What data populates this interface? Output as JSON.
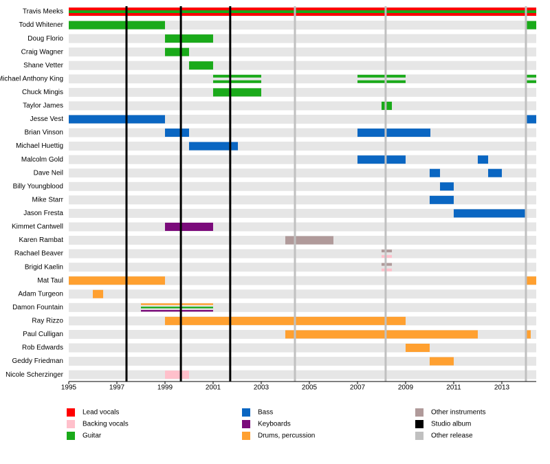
{
  "chart_data": {
    "type": "timeline",
    "xlim": [
      1995,
      2014.43
    ],
    "xticks": [
      1995,
      1997,
      1999,
      2001,
      2003,
      2005,
      2007,
      2009,
      2011,
      2013
    ],
    "legend": [
      {
        "name": "Lead vocals",
        "color": "#ff0000"
      },
      {
        "name": "Backing vocals",
        "color": "#ffc0cb"
      },
      {
        "name": "Guitar",
        "color": "#1aaa1a"
      },
      {
        "name": "Bass",
        "color": "#0a66c2"
      },
      {
        "name": "Keyboards",
        "color": "#7a0a7a"
      },
      {
        "name": "Drums, percussion",
        "color": "#ffa030"
      },
      {
        "name": "Other instruments",
        "color": "#b09a9a"
      },
      {
        "name": "Studio album",
        "color": "#000000"
      },
      {
        "name": "Other release",
        "color": "#c0c0c0"
      }
    ],
    "releases": [
      {
        "kind": "Studio album",
        "year": 1997.4
      },
      {
        "kind": "Studio album",
        "year": 1999.66
      },
      {
        "kind": "Studio album",
        "year": 2001.71
      },
      {
        "kind": "Other release",
        "year": 2004.4
      },
      {
        "kind": "Other release",
        "year": 2008.17
      },
      {
        "kind": "Other release",
        "year": 2014.0
      }
    ],
    "rows": [
      {
        "name": "Travis Meeks",
        "bars": [
          {
            "roles": [
              "Lead vocals",
              "Guitar"
            ],
            "start": 1995,
            "end": 2014.43
          }
        ]
      },
      {
        "name": "Todd Whitener",
        "bars": [
          {
            "roles": [
              "Guitar"
            ],
            "start": 1995,
            "end": 1999
          },
          {
            "roles": [
              "Guitar"
            ],
            "start": 2014,
            "end": 2014.43
          }
        ]
      },
      {
        "name": "Doug Florio",
        "bars": [
          {
            "roles": [
              "Guitar"
            ],
            "start": 1999,
            "end": 2001
          }
        ]
      },
      {
        "name": "Craig Wagner",
        "bars": [
          {
            "roles": [
              "Guitar"
            ],
            "start": 1999,
            "end": 2000
          }
        ]
      },
      {
        "name": "Shane Vetter",
        "bars": [
          {
            "roles": [
              "Guitar"
            ],
            "start": 2000,
            "end": 2001
          }
        ]
      },
      {
        "name": "Michael Anthony King",
        "bars": [
          {
            "roles": [
              "Guitar"
            ],
            "stripes": true,
            "start": 2001,
            "end": 2003
          },
          {
            "roles": [
              "Guitar"
            ],
            "stripes": true,
            "start": 2007,
            "end": 2009
          },
          {
            "roles": [
              "Guitar"
            ],
            "stripes": true,
            "start": 2014,
            "end": 2014.43
          }
        ]
      },
      {
        "name": "Chuck Mingis",
        "bars": [
          {
            "roles": [
              "Guitar"
            ],
            "start": 2001,
            "end": 2003
          }
        ]
      },
      {
        "name": "Taylor James",
        "bars": [
          {
            "roles": [
              "Guitar"
            ],
            "start": 2008,
            "end": 2008.43
          }
        ]
      },
      {
        "name": "Jesse Vest",
        "bars": [
          {
            "roles": [
              "Bass"
            ],
            "start": 1995,
            "end": 1999
          },
          {
            "roles": [
              "Bass"
            ],
            "start": 2014,
            "end": 2014.43
          }
        ]
      },
      {
        "name": "Brian Vinson",
        "bars": [
          {
            "roles": [
              "Bass"
            ],
            "start": 1999,
            "end": 2000
          },
          {
            "roles": [
              "Bass"
            ],
            "start": 2007,
            "end": 2010.03
          }
        ]
      },
      {
        "name": "Michael Huettig",
        "bars": [
          {
            "roles": [
              "Bass"
            ],
            "start": 2000,
            "end": 2002.03
          }
        ]
      },
      {
        "name": "Malcolm Gold",
        "bars": [
          {
            "roles": [
              "Bass"
            ],
            "start": 2007,
            "end": 2009
          },
          {
            "roles": [
              "Bass"
            ],
            "start": 2012,
            "end": 2012.43
          }
        ]
      },
      {
        "name": "Dave Neil",
        "bars": [
          {
            "roles": [
              "Bass"
            ],
            "start": 2010,
            "end": 2010.43
          },
          {
            "roles": [
              "Bass"
            ],
            "start": 2012.43,
            "end": 2013
          }
        ]
      },
      {
        "name": "Billy Youngblood",
        "bars": [
          {
            "roles": [
              "Bass"
            ],
            "start": 2010.43,
            "end": 2011
          }
        ]
      },
      {
        "name": "Mike Starr",
        "bars": [
          {
            "roles": [
              "Bass"
            ],
            "start": 2010,
            "end": 2011
          }
        ]
      },
      {
        "name": "Jason Fresta",
        "bars": [
          {
            "roles": [
              "Bass"
            ],
            "start": 2011,
            "end": 2014
          }
        ]
      },
      {
        "name": "Kimmet Cantwell",
        "bars": [
          {
            "roles": [
              "Keyboards"
            ],
            "start": 1999,
            "end": 2001
          }
        ]
      },
      {
        "name": "Karen Rambat",
        "bars": [
          {
            "roles": [
              "Other instruments"
            ],
            "start": 2004,
            "end": 2006
          }
        ]
      },
      {
        "name": "Rachael Beaver",
        "bars": [
          {
            "roles": [
              "Other instruments",
              "Backing vocals"
            ],
            "stripes": true,
            "start": 2008,
            "end": 2008.43
          }
        ]
      },
      {
        "name": "Brigid Kaelin",
        "bars": [
          {
            "roles": [
              "Other instruments",
              "Backing vocals"
            ],
            "stripes": true,
            "start": 2008,
            "end": 2008.43
          }
        ]
      },
      {
        "name": "Mat Taul",
        "bars": [
          {
            "roles": [
              "Drums, percussion"
            ],
            "start": 1995,
            "end": 1999
          },
          {
            "roles": [
              "Drums, percussion"
            ],
            "start": 2014,
            "end": 2014.43
          }
        ]
      },
      {
        "name": "Adam Turgeon",
        "bars": [
          {
            "roles": [
              "Drums, percussion"
            ],
            "start": 1996,
            "end": 1996.43
          }
        ]
      },
      {
        "name": "Damon Fountain",
        "bars": [
          {
            "roles": [
              "Drums, percussion",
              "Guitar",
              "Keyboards"
            ],
            "stripes": true,
            "start": 1998,
            "end": 2001
          }
        ]
      },
      {
        "name": "Ray Rizzo",
        "bars": [
          {
            "roles": [
              "Drums, percussion"
            ],
            "start": 1999,
            "end": 2009
          }
        ]
      },
      {
        "name": "Paul Culligan",
        "bars": [
          {
            "roles": [
              "Drums, percussion"
            ],
            "start": 2004,
            "end": 2012
          },
          {
            "roles": [
              "Drums, percussion"
            ],
            "start": 2014,
            "end": 2014.2
          }
        ]
      },
      {
        "name": "Rob Edwards",
        "bars": [
          {
            "roles": [
              "Drums, percussion"
            ],
            "start": 2009,
            "end": 2010
          }
        ]
      },
      {
        "name": "Geddy Friedman",
        "bars": [
          {
            "roles": [
              "Drums, percussion"
            ],
            "start": 2010,
            "end": 2011
          }
        ]
      },
      {
        "name": "Nicole Scherzinger",
        "bars": [
          {
            "roles": [
              "Backing vocals"
            ],
            "start": 1999,
            "end": 2000
          }
        ]
      }
    ]
  }
}
